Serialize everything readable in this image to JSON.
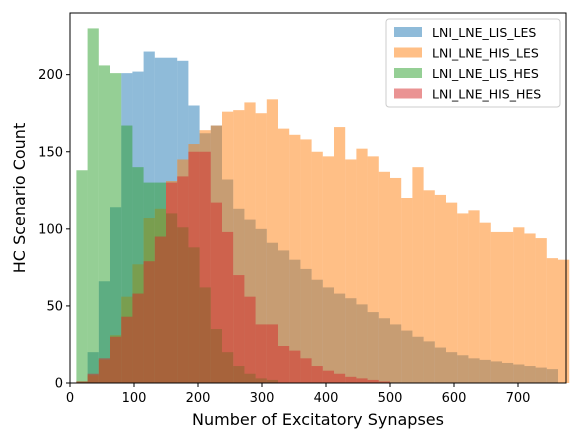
{
  "chart_data": {
    "type": "bar",
    "subtype": "overlaid-histogram",
    "xlabel": "Number of Excitatory Synapses",
    "ylabel": "HC Scenario Count",
    "xlim": [
      0,
      775
    ],
    "ylim": [
      0,
      240
    ],
    "xticks": [
      "0",
      "100",
      "200",
      "300",
      "400",
      "500",
      "600",
      "700"
    ],
    "yticks": [
      "0",
      "50",
      "100",
      "150",
      "200"
    ],
    "bin_width": 17.5,
    "opacity": 0.5,
    "legend_position": "top-right",
    "series": [
      {
        "name": "LNI_LNE_LIS_LES",
        "color": "#1f77b4",
        "bins": [
          [
            10,
            1
          ],
          [
            27.5,
            20
          ],
          [
            45,
            66
          ],
          [
            62.5,
            114
          ],
          [
            80,
            201
          ],
          [
            97.5,
            202
          ],
          [
            115,
            215
          ],
          [
            132.5,
            211
          ],
          [
            150,
            211
          ],
          [
            167.5,
            209
          ],
          [
            185,
            180
          ],
          [
            202.5,
            162
          ],
          [
            220,
            167
          ],
          [
            237.5,
            132
          ],
          [
            255,
            113
          ],
          [
            272.5,
            106
          ],
          [
            290,
            100
          ],
          [
            307.5,
            91
          ],
          [
            325,
            86
          ],
          [
            342.5,
            80
          ],
          [
            360,
            74
          ],
          [
            377.5,
            67
          ],
          [
            395,
            62
          ],
          [
            412.5,
            58
          ],
          [
            430,
            55
          ],
          [
            447.5,
            51
          ],
          [
            465,
            46
          ],
          [
            482.5,
            42
          ],
          [
            500,
            38
          ],
          [
            517.5,
            34
          ],
          [
            535,
            30
          ],
          [
            552.5,
            27
          ],
          [
            570,
            23
          ],
          [
            587.5,
            20
          ],
          [
            605,
            18
          ],
          [
            622.5,
            16
          ],
          [
            640,
            15
          ],
          [
            657.5,
            14
          ],
          [
            675,
            13
          ],
          [
            692.5,
            12
          ],
          [
            710,
            11
          ],
          [
            727.5,
            10
          ],
          [
            745,
            9
          ]
        ]
      },
      {
        "name": "LNI_LNE_HIS_LES",
        "color": "#ff7f0e",
        "bins": [
          [
            10,
            1
          ],
          [
            27.5,
            5
          ],
          [
            45,
            15
          ],
          [
            62.5,
            31
          ],
          [
            80,
            56
          ],
          [
            97.5,
            77
          ],
          [
            115,
            107
          ],
          [
            132.5,
            113
          ],
          [
            150,
            131
          ],
          [
            167.5,
            145
          ],
          [
            185,
            155
          ],
          [
            202.5,
            164
          ],
          [
            220,
            167
          ],
          [
            237.5,
            176
          ],
          [
            255,
            177
          ],
          [
            272.5,
            182
          ],
          [
            290,
            175
          ],
          [
            307.5,
            184
          ],
          [
            325,
            165
          ],
          [
            342.5,
            161
          ],
          [
            360,
            158
          ],
          [
            377.5,
            150
          ],
          [
            395,
            147
          ],
          [
            412.5,
            166
          ],
          [
            430,
            145
          ],
          [
            447.5,
            152
          ],
          [
            465,
            147
          ],
          [
            482.5,
            137
          ],
          [
            500,
            133
          ],
          [
            517.5,
            120
          ],
          [
            535,
            140
          ],
          [
            552.5,
            125
          ],
          [
            570,
            122
          ],
          [
            587.5,
            117
          ],
          [
            605,
            110
          ],
          [
            622.5,
            112
          ],
          [
            640,
            104
          ],
          [
            657.5,
            98
          ],
          [
            675,
            98
          ],
          [
            692.5,
            101
          ],
          [
            710,
            97
          ],
          [
            727.5,
            94
          ],
          [
            745,
            81
          ],
          [
            762.5,
            80
          ]
        ]
      },
      {
        "name": "LNI_LNE_LIS_HES",
        "color": "#2ca02c",
        "bins": [
          [
            10,
            138
          ],
          [
            27.5,
            230
          ],
          [
            45,
            206
          ],
          [
            62.5,
            201
          ],
          [
            80,
            167
          ],
          [
            97.5,
            140
          ],
          [
            115,
            130
          ],
          [
            132.5,
            130
          ],
          [
            150,
            110
          ],
          [
            167.5,
            101
          ],
          [
            185,
            88
          ],
          [
            202.5,
            62
          ],
          [
            220,
            35
          ],
          [
            237.5,
            20
          ],
          [
            255,
            11
          ],
          [
            272.5,
            6
          ],
          [
            290,
            3
          ],
          [
            307.5,
            2
          ]
        ]
      },
      {
        "name": "LNI_LNE_HIS_HES",
        "color": "#d62728",
        "bins": [
          [
            10,
            1
          ],
          [
            27.5,
            6
          ],
          [
            45,
            16
          ],
          [
            62.5,
            30
          ],
          [
            80,
            43
          ],
          [
            97.5,
            58
          ],
          [
            115,
            79
          ],
          [
            132.5,
            95
          ],
          [
            150,
            130
          ],
          [
            167.5,
            134
          ],
          [
            185,
            150
          ],
          [
            202.5,
            150
          ],
          [
            220,
            117
          ],
          [
            237.5,
            98
          ],
          [
            255,
            70
          ],
          [
            272.5,
            56
          ],
          [
            290,
            38
          ],
          [
            307.5,
            38
          ],
          [
            325,
            24
          ],
          [
            342.5,
            21
          ],
          [
            360,
            16
          ],
          [
            377.5,
            11
          ],
          [
            395,
            8
          ],
          [
            412.5,
            6
          ],
          [
            430,
            4
          ],
          [
            447.5,
            3
          ],
          [
            465,
            2
          ],
          [
            482.5,
            1
          ]
        ]
      }
    ]
  }
}
